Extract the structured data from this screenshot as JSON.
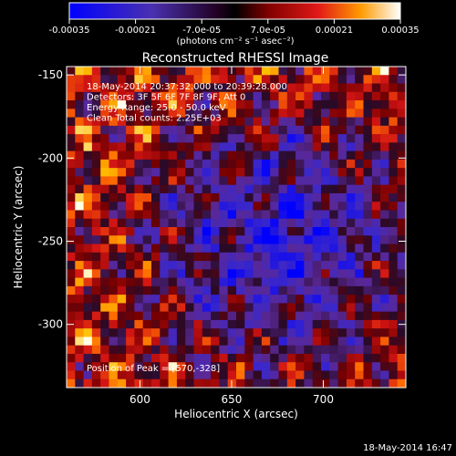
{
  "chart_data": {
    "type": "heatmap",
    "title": "Reconstructed RHESSI Image",
    "xlabel": "Heliocentric X (arcsec)",
    "ylabel": "Heliocentric Y (arcsec)",
    "xlim": [
      560,
      745
    ],
    "ylim": [
      -338,
      -145
    ],
    "x_ticks": [
      600,
      650,
      700
    ],
    "y_ticks": [
      -150,
      -200,
      -250,
      -300
    ],
    "annotations": [
      "18-May-2014 20:37:32.000 to 20:39:28.000",
      "Detectors: 3F 5F 6F 7F 8F 9F, Att 0",
      "Energy Range: 25.0 - 50.0 keV",
      "Clean     Total counts: 2.25E+03"
    ],
    "peak_label": "Position of Peak = [570,-328]",
    "peak": [
      570,
      -328
    ],
    "colorbar": {
      "ticks": [
        "-0.00035",
        "-0.00021",
        "-7.0e-05",
        "7.0e-05",
        "0.00021",
        "0.00035"
      ],
      "range": [
        -0.00035,
        0.00035
      ],
      "unit_label": "(photons cm⁻² s⁻¹ asec⁻²)"
    }
  },
  "footer": {
    "timestamp": "18-May-2014 16:47"
  },
  "colors": {
    "background": "#000000",
    "colormap": [
      "#0000ff",
      "#2a2ad0",
      "#5a2a9a",
      "#3a1030",
      "#000000",
      "#7a0000",
      "#d01010",
      "#ff6a00",
      "#ffc000",
      "#ffffe0"
    ]
  }
}
